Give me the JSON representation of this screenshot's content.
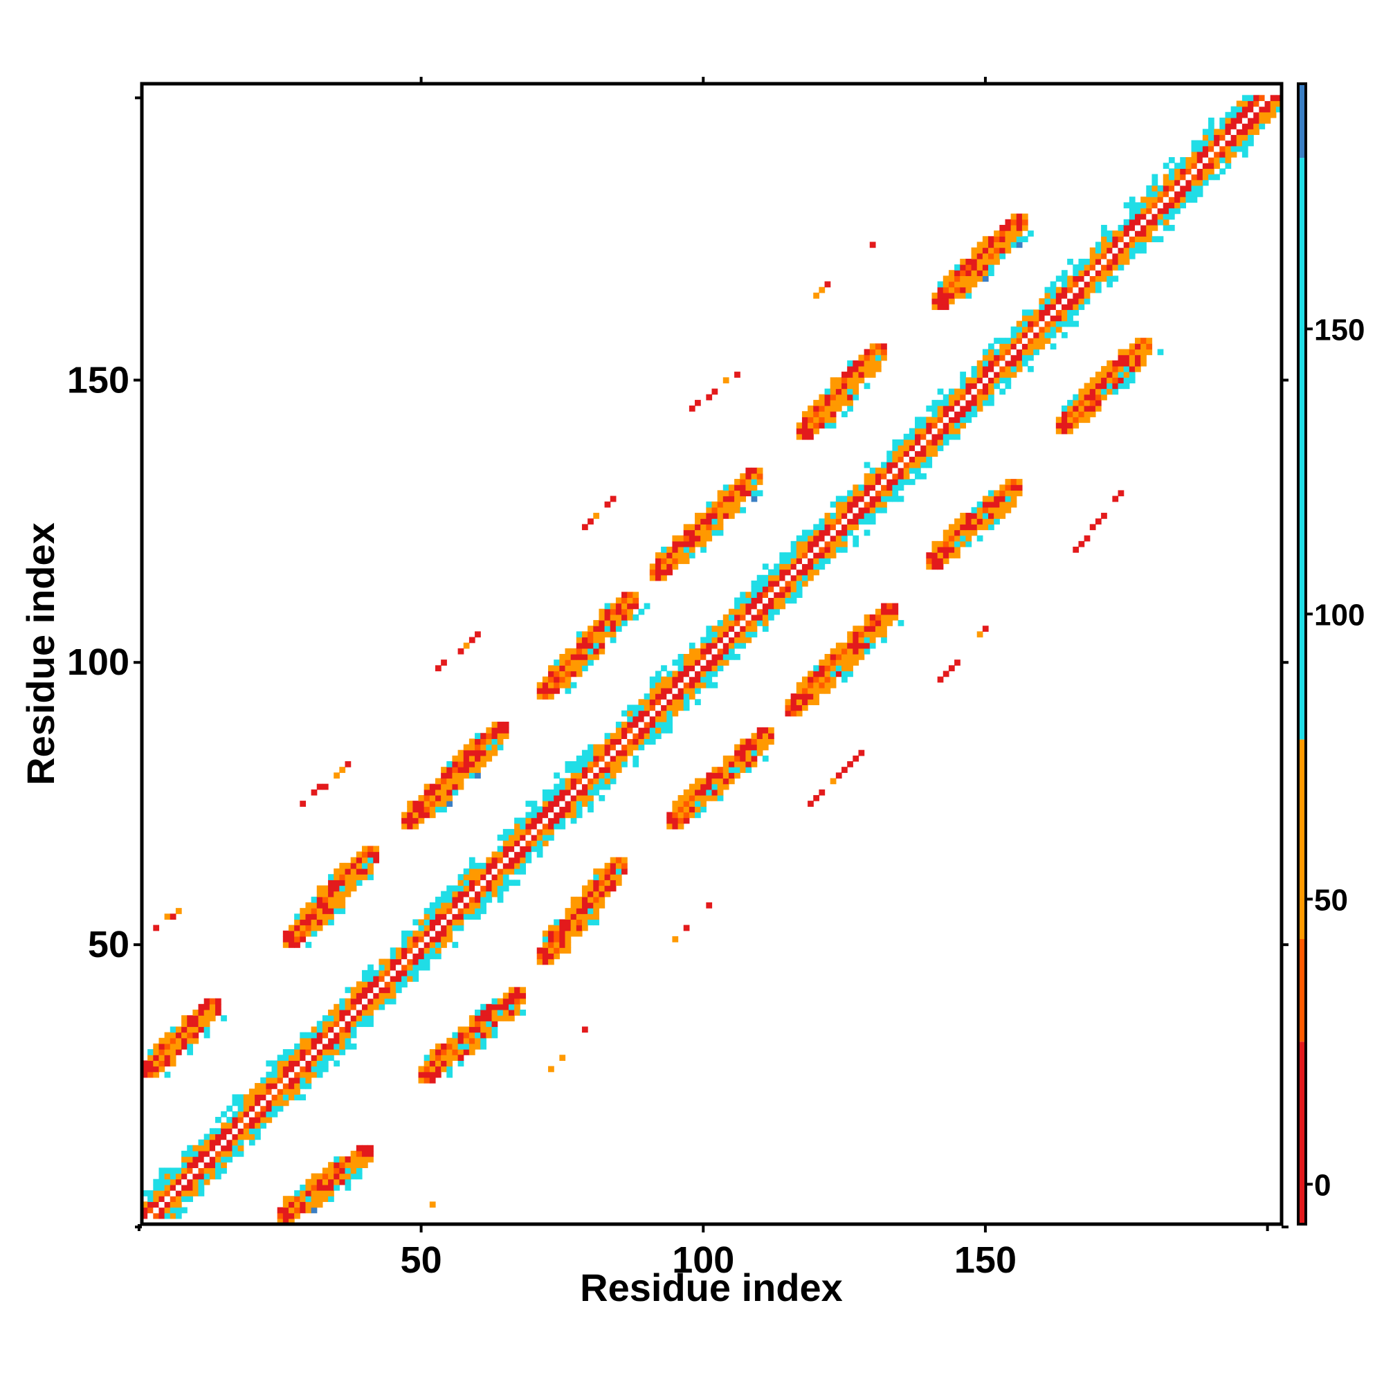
{
  "chart_data": {
    "type": "heatmap",
    "title": "",
    "xlabel": "Residue index",
    "ylabel": "Residue index",
    "xlim": [
      1,
      202
    ],
    "ylim": [
      1,
      202
    ],
    "x_ticks": [
      50,
      100,
      150
    ],
    "y_ticks": [
      50,
      100,
      150
    ],
    "grid": false,
    "colorbar": {
      "ticks": [
        0,
        50,
        100,
        150
      ],
      "range": [
        -7,
        193
      ],
      "bands": [
        {
          "from": -7,
          "to": 25,
          "color": "#e31a1c"
        },
        {
          "from": 25,
          "to": 43,
          "color": "#ff5a00"
        },
        {
          "from": 43,
          "to": 78,
          "color": "#ff9900"
        },
        {
          "from": 78,
          "to": 180,
          "color": "#20dde6"
        },
        {
          "from": 180,
          "to": 193,
          "color": "#3b7fc4"
        }
      ]
    },
    "bands": [
      {
        "name": "diagonal",
        "start": [
          2,
          2
        ],
        "end": [
          200,
          200
        ],
        "width": 11,
        "offset": 0
      },
      {
        "name": "upper-1",
        "start": [
          2,
          28
        ],
        "end": [
          13,
          39
        ],
        "width": 5,
        "offset": 0
      },
      {
        "name": "upper-2",
        "start": [
          27,
          51
        ],
        "end": [
          41,
          66
        ],
        "width": 5,
        "offset": 0
      },
      {
        "name": "upper-3",
        "start": [
          48,
          72
        ],
        "end": [
          64,
          88
        ],
        "width": 5,
        "offset": 0
      },
      {
        "name": "upper-4",
        "start": [
          72,
          95
        ],
        "end": [
          87,
          111
        ],
        "width": 5,
        "offset": 0
      },
      {
        "name": "upper-5",
        "start": [
          92,
          116
        ],
        "end": [
          109,
          133
        ],
        "width": 5,
        "offset": 0
      },
      {
        "name": "upper-6",
        "start": [
          118,
          141
        ],
        "end": [
          131,
          155
        ],
        "width": 5,
        "offset": 0
      },
      {
        "name": "upper-7",
        "start": [
          142,
          164
        ],
        "end": [
          156,
          178
        ],
        "width": 5,
        "offset": 0
      },
      {
        "name": "lower-1",
        "start": [
          26,
          2
        ],
        "end": [
          40,
          13
        ],
        "width": 5,
        "offset": 0
      },
      {
        "name": "lower-2",
        "start": [
          51,
          27
        ],
        "end": [
          67,
          41
        ],
        "width": 5,
        "offset": 0
      },
      {
        "name": "lower-3",
        "start": [
          72,
          48
        ],
        "end": [
          85,
          64
        ],
        "width": 5,
        "offset": 0
      },
      {
        "name": "lower-4",
        "start": [
          95,
          72
        ],
        "end": [
          111,
          87
        ],
        "width": 5,
        "offset": 0
      },
      {
        "name": "lower-5",
        "start": [
          116,
          92
        ],
        "end": [
          133,
          109
        ],
        "width": 5,
        "offset": 0
      },
      {
        "name": "lower-6",
        "start": [
          141,
          118
        ],
        "end": [
          155,
          131
        ],
        "width": 5,
        "offset": 0
      },
      {
        "name": "lower-7",
        "start": [
          164,
          142
        ],
        "end": [
          178,
          156
        ],
        "width": 5,
        "offset": 0
      }
    ],
    "sparse_contacts": [
      {
        "start": [
          3,
          53
        ],
        "end": [
          8,
          57
        ]
      },
      {
        "start": [
          28,
          74
        ],
        "end": [
          37,
          82
        ]
      },
      {
        "start": [
          51,
          97
        ],
        "end": [
          60,
          105
        ]
      },
      {
        "start": [
          74,
          119
        ],
        "end": [
          84,
          129
        ]
      },
      {
        "start": [
          97,
          144
        ],
        "end": [
          107,
          152
        ]
      },
      {
        "start": [
          120,
          165
        ],
        "end": [
          130,
          174
        ]
      },
      {
        "start": [
          51,
          3
        ],
        "end": [
          56,
          7
        ]
      },
      {
        "start": [
          73,
          28
        ],
        "end": [
          81,
          37
        ]
      },
      {
        "start": [
          95,
          51
        ],
        "end": [
          104,
          60
        ]
      },
      {
        "start": [
          118,
          74
        ],
        "end": [
          128,
          84
        ]
      },
      {
        "start": [
          142,
          97
        ],
        "end": [
          151,
          107
        ]
      },
      {
        "start": [
          166,
          120
        ],
        "end": [
          174,
          130
        ]
      }
    ]
  }
}
